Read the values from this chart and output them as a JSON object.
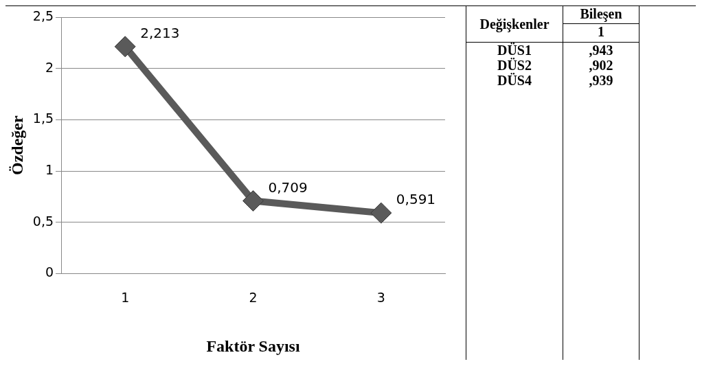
{
  "chart_data": [
    {
      "type": "line",
      "xlabel": "Faktör Sayısı",
      "ylabel": "Özdeğer",
      "categories": [
        "1",
        "2",
        "3"
      ],
      "series": [
        {
          "color": "#5a5a5a",
          "values": [
            2.213,
            0.709,
            0.591
          ]
        }
      ],
      "value_labels": [
        "2,213",
        "0,709",
        "0,591"
      ],
      "ylim": [
        0,
        2.5
      ],
      "yticks": [
        {
          "value": 0,
          "label": "0"
        },
        {
          "value": 0.5,
          "label": "0,5"
        },
        {
          "value": 1,
          "label": "1"
        },
        {
          "value": 1.5,
          "label": "1,5"
        },
        {
          "value": 2,
          "label": "2"
        },
        {
          "value": 2.5,
          "label": "2,5"
        }
      ],
      "grid": "y",
      "legend": false,
      "marker": "diamond",
      "line_style": "solid"
    },
    {
      "type": "other",
      "annotations": [
        "Değişkenler",
        "Bileşen",
        "1",
        "DÜS1",
        ",943",
        "DÜS2",
        ",902",
        "DÜS4",
        ",939"
      ]
    }
  ]
}
